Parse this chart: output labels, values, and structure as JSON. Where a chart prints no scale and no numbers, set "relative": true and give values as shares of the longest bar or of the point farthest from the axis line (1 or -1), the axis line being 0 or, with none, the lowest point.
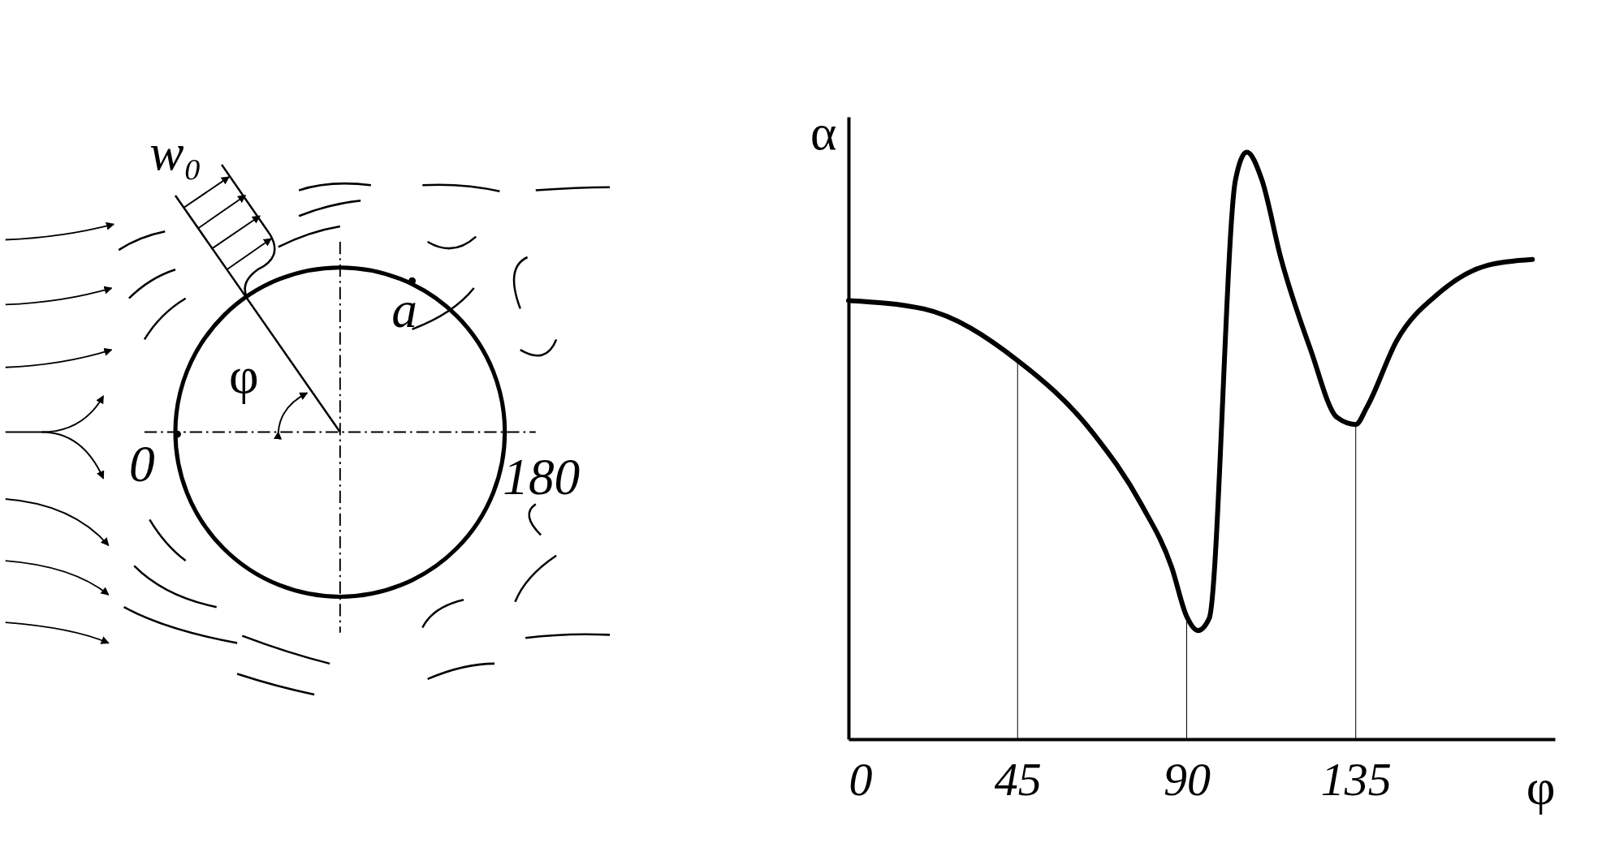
{
  "chart_data": {
    "type": "line",
    "relative": true,
    "xlabel": "φ",
    "ylabel": "α",
    "annotations": [
      "w₀",
      "a",
      "φ",
      "0",
      "180"
    ],
    "x": [
      0,
      20,
      45,
      65,
      78,
      86,
      90,
      93,
      96,
      103,
      106,
      110,
      115,
      123,
      130,
      135,
      138,
      146,
      157,
      170,
      182
    ],
    "series": [
      {
        "color": "#000000",
        "values": [
          0.747,
          0.733,
          0.645,
          0.522,
          0.399,
          0.293,
          0.209,
          0.185,
          0.206,
          0.953,
          1,
          0.953,
          0.821,
          0.663,
          0.548,
          0.536,
          0.566,
          0.68,
          0.759,
          0.807,
          0.817
        ]
      }
    ],
    "xlim": [
      0,
      188
    ],
    "xticks": [
      0,
      45,
      90,
      135
    ],
    "ref_lines": [
      {
        "axis": "x",
        "value": 45
      },
      {
        "axis": "x",
        "value": 90
      },
      {
        "axis": "x",
        "value": 135
      }
    ],
    "grid": false,
    "marker": "none",
    "line_style": "solid"
  }
}
